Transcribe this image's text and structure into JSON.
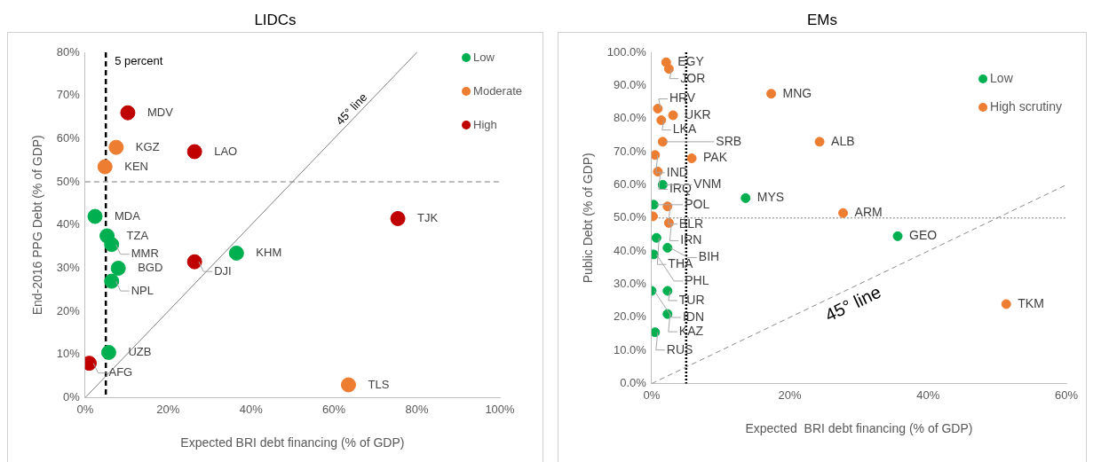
{
  "chart_data": [
    {
      "type": "scatter",
      "title": "LIDCs",
      "xlabel": "Expected BRI debt financing (% of GDP)",
      "ylabel": "End-2016 PPG Debt (% of GDP)",
      "xlim": [
        0,
        100
      ],
      "xticks": [
        {
          "value": 0,
          "label": "0%"
        },
        {
          "value": 20,
          "label": "20%"
        },
        {
          "value": 40,
          "label": "40%"
        },
        {
          "value": 60,
          "label": "60%"
        },
        {
          "value": 80,
          "label": "80%"
        },
        {
          "value": 100,
          "label": "100%"
        }
      ],
      "ylim": [
        0,
        80
      ],
      "yticks": [
        {
          "value": 0,
          "label": "0%"
        },
        {
          "value": 10,
          "label": "10%"
        },
        {
          "value": 20,
          "label": "20%"
        },
        {
          "value": 30,
          "label": "30%"
        },
        {
          "value": 40,
          "label": "40%"
        },
        {
          "value": 50,
          "label": "50%"
        },
        {
          "value": 60,
          "label": "60%"
        },
        {
          "value": 70,
          "label": "70%"
        },
        {
          "value": 80,
          "label": "80%"
        }
      ],
      "grid": false,
      "legend": "top right",
      "marker": "circle",
      "series": [
        {
          "name": "Low",
          "color": "#00b050",
          "x": [
            2.4,
            5.3,
            6.4,
            8,
            6.4,
            36.5,
            5.7
          ],
          "values": [
            42,
            37.5,
            35.5,
            30,
            27,
            33.5,
            10.5
          ]
        },
        {
          "name": "Moderate",
          "color": "#ed7d31",
          "x": [
            7.5,
            4.8,
            63.5
          ],
          "values": [
            58,
            53.5,
            3
          ]
        },
        {
          "name": "High",
          "color": "#c00000",
          "x": [
            10.3,
            26.4,
            26.4,
            75.4,
            1
          ],
          "values": [
            66,
            57,
            31.5,
            41.5,
            8
          ]
        },
        {
          "type": "line",
          "color": "#7f7f7f",
          "line_style": "solid",
          "marker": "none",
          "x": [
            0,
            80
          ],
          "values": [
            0,
            80
          ]
        }
      ],
      "ref_lines": [
        {
          "axis": "x",
          "value": 5,
          "label": "5 percent",
          "color": "#000000",
          "line_style": "dashed"
        },
        {
          "axis": "y",
          "value": 50,
          "color": "#a6a6a6",
          "line_style": "dashed"
        }
      ],
      "annotations": [
        {
          "text": "MDA",
          "x": 2.4,
          "y": 42
        },
        {
          "text": "TZA",
          "x": 5.3,
          "y": 37.5
        },
        {
          "text": "MMR",
          "x": 6.4,
          "y": 35.5
        },
        {
          "text": "BGD",
          "x": 8,
          "y": 30
        },
        {
          "text": "NPL",
          "x": 6.4,
          "y": 27
        },
        {
          "text": "KHM",
          "x": 36.5,
          "y": 33.5
        },
        {
          "text": "UZB",
          "x": 5.7,
          "y": 10.5
        },
        {
          "text": "KGZ",
          "x": 7.5,
          "y": 58
        },
        {
          "text": "KEN",
          "x": 4.8,
          "y": 53.5
        },
        {
          "text": "TLS",
          "x": 63.5,
          "y": 3
        },
        {
          "text": "MDV",
          "x": 10.3,
          "y": 66
        },
        {
          "text": "LAO",
          "x": 26.4,
          "y": 57
        },
        {
          "text": "DJI",
          "x": 26.4,
          "y": 31.5
        },
        {
          "text": "TJK",
          "x": 75.4,
          "y": 41.5
        },
        {
          "text": "AFG",
          "x": 1,
          "y": 8
        },
        "45° line"
      ]
    },
    {
      "type": "scatter",
      "title": "EMs",
      "xlabel": "Expected  BRI debt financing (% of GDP)",
      "ylabel": "Public Debt (% of GDP)",
      "xlim": [
        0,
        60
      ],
      "xticks": [
        {
          "value": 0,
          "label": "0%"
        },
        {
          "value": 20,
          "label": "20%"
        },
        {
          "value": 40,
          "label": "40%"
        },
        {
          "value": 60,
          "label": "60%"
        }
      ],
      "ylim": [
        0,
        100
      ],
      "yticks": [
        {
          "value": 0,
          "label": "0.0%"
        },
        {
          "value": 10,
          "label": "10.0%"
        },
        {
          "value": 20,
          "label": "20.0%"
        },
        {
          "value": 30,
          "label": "30.0%"
        },
        {
          "value": 40,
          "label": "40.0%"
        },
        {
          "value": 50,
          "label": "50.0%"
        },
        {
          "value": 60,
          "label": "60.0%"
        },
        {
          "value": 70,
          "label": "70.0%"
        },
        {
          "value": 80,
          "label": "80.0%"
        },
        {
          "value": 90,
          "label": "90.0%"
        },
        {
          "value": 100,
          "label": "100.0%"
        }
      ],
      "grid": false,
      "legend": "top right",
      "marker": "circle",
      "series": [
        {
          "name": "Low",
          "color": "#00b050",
          "x": [
            1.6,
            13.6,
            0.3,
            0.7,
            35.6,
            2.3,
            0.3,
            2.3,
            0,
            2.3,
            0.5
          ],
          "values": [
            60,
            56,
            54,
            44,
            44.5,
            41,
            39,
            28,
            28,
            21,
            15.5
          ]
        },
        {
          "name": "High scrutiny",
          "color": "#ed7d31",
          "x": [
            2.1,
            2.5,
            0.9,
            17.3,
            1.4,
            3.1,
            1.6,
            24.3,
            0.5,
            5.8,
            0.9,
            2.3,
            27.7,
            0.2,
            2.5,
            51.3
          ],
          "values": [
            97,
            95,
            83,
            87.5,
            79.5,
            81,
            73,
            73,
            69,
            68,
            64,
            53.5,
            51.5,
            50.5,
            48.5,
            24
          ]
        },
        {
          "type": "line",
          "color": "#8c8c8c",
          "line_style": "dashed",
          "marker": "none",
          "x": [
            0,
            60
          ],
          "values": [
            0,
            60
          ]
        }
      ],
      "ref_lines": [
        {
          "axis": "x",
          "value": 5,
          "color": "#000000",
          "line_style": "dotted"
        },
        {
          "axis": "y",
          "value": 50,
          "color": "#a6a6a6",
          "line_style": "dotted"
        }
      ],
      "annotations": [
        {
          "text": "VNM",
          "x": 1.6,
          "y": 60
        },
        {
          "text": "MYS",
          "x": 13.6,
          "y": 56
        },
        {
          "text": "POL",
          "x": 0.3,
          "y": 54
        },
        {
          "text": "THA",
          "x": 0.7,
          "y": 44
        },
        {
          "text": "GEO",
          "x": 35.6,
          "y": 44.5
        },
        {
          "text": "BIH",
          "x": 2.3,
          "y": 41
        },
        {
          "text": "PHL",
          "x": 0.3,
          "y": 39
        },
        {
          "text": "TUR",
          "x": 2.3,
          "y": 28
        },
        {
          "text": "IDN",
          "x": 0,
          "y": 28
        },
        {
          "text": "KAZ",
          "x": 2.3,
          "y": 21
        },
        {
          "text": "RUS",
          "x": 0.5,
          "y": 15.5
        },
        {
          "text": "EGY",
          "x": 2.1,
          "y": 97
        },
        {
          "text": "JOR",
          "x": 2.5,
          "y": 95
        },
        {
          "text": "HRV",
          "x": 0.9,
          "y": 83
        },
        {
          "text": "MNG",
          "x": 17.3,
          "y": 87.5
        },
        {
          "text": "LKA",
          "x": 1.4,
          "y": 79.5
        },
        {
          "text": "UKR",
          "x": 3.1,
          "y": 81
        },
        {
          "text": "SRB",
          "x": 1.6,
          "y": 73
        },
        {
          "text": "ALB",
          "x": 24.3,
          "y": 73
        },
        {
          "text": "IND",
          "x": 0.5,
          "y": 69
        },
        {
          "text": "PAK",
          "x": 5.8,
          "y": 68
        },
        {
          "text": "IRQ",
          "x": 0.9,
          "y": 64
        },
        {
          "text": "BLR",
          "x": 2.3,
          "y": 53.5
        },
        {
          "text": "ARM",
          "x": 27.7,
          "y": 51.5
        },
        {
          "text": "IRN",
          "x": 2.5,
          "y": 48.5
        },
        {
          "text": "TKM",
          "x": 51.3,
          "y": 24
        },
        "45° line"
      ]
    }
  ]
}
